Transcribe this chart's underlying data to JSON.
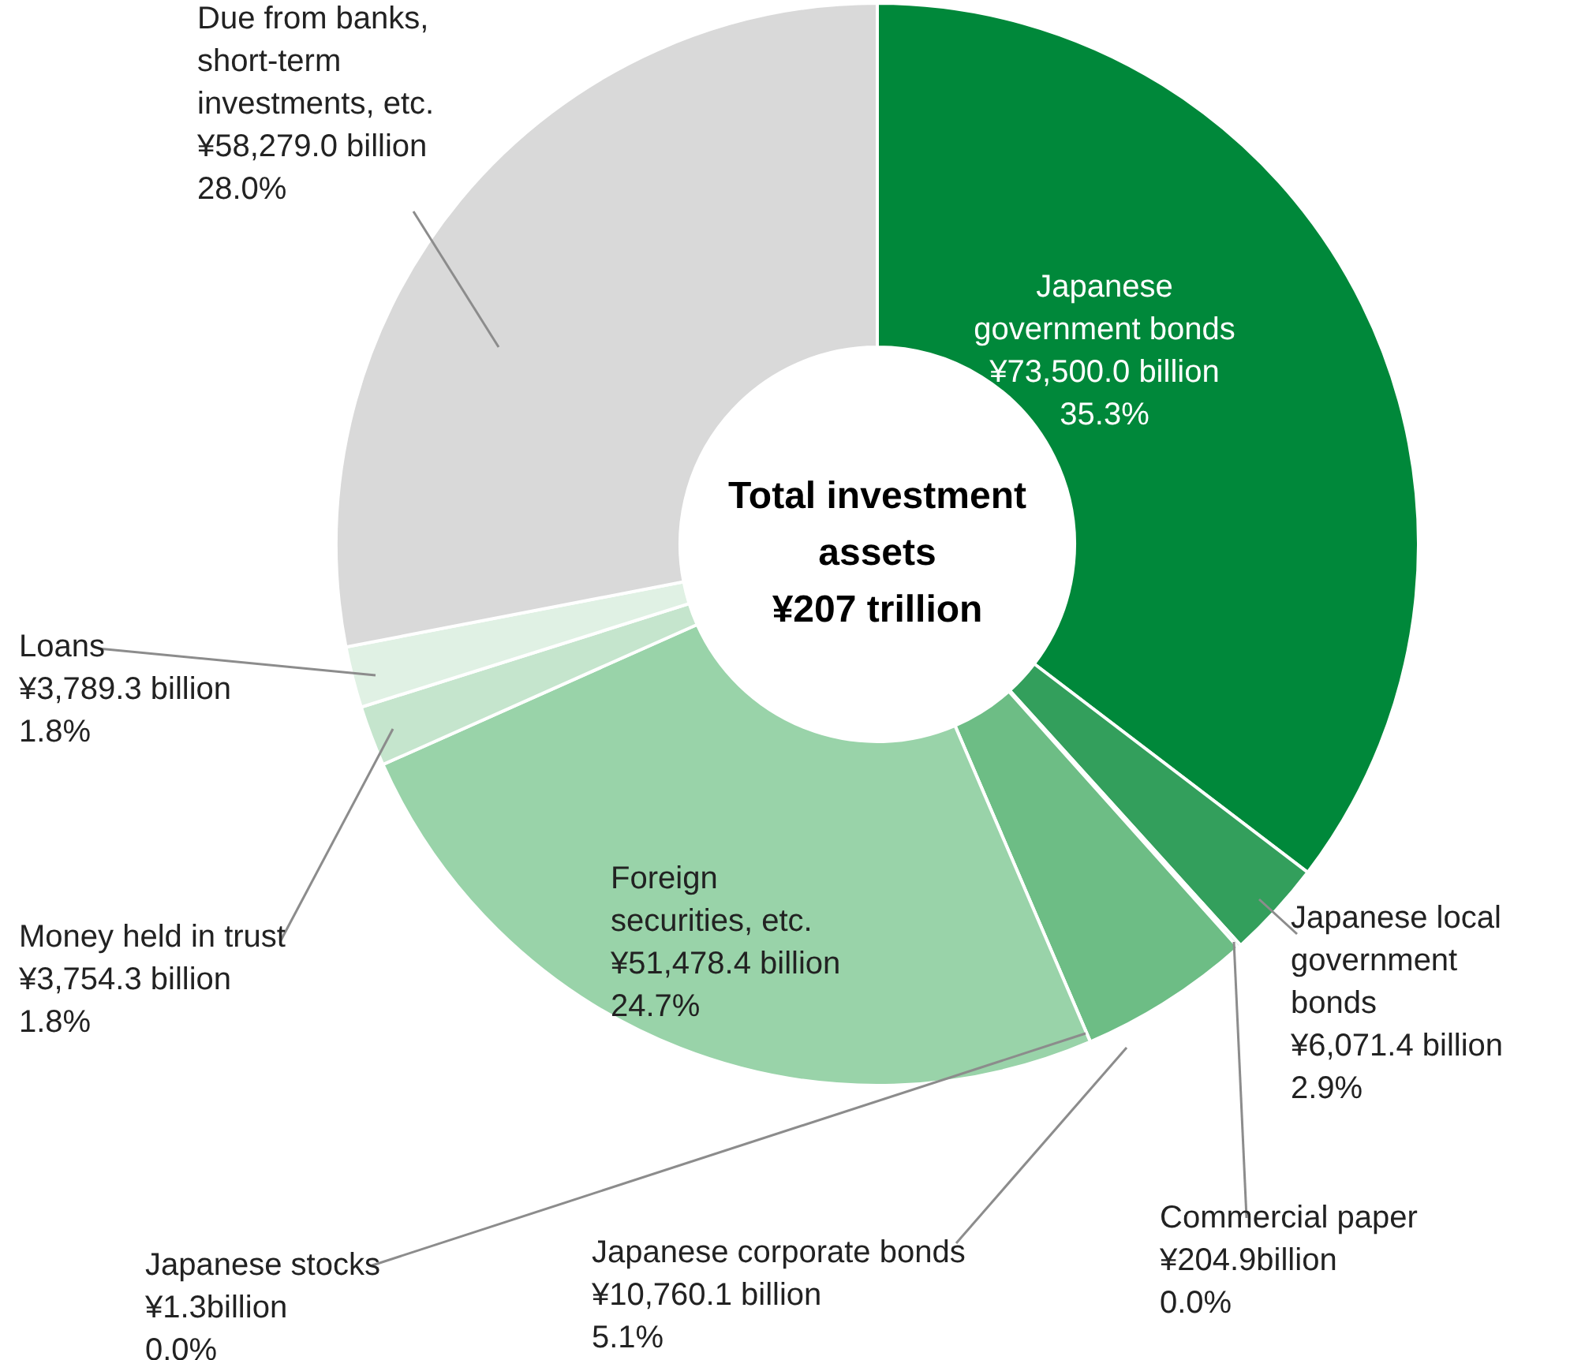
{
  "chart_data": {
    "type": "donut",
    "categories": [
      "Japanese government bonds",
      "Japanese local government bonds",
      "Commercial paper",
      "Japanese corporate bonds",
      "Japanese stocks",
      "Foreign securities, etc.",
      "Money held in trust",
      "Loans",
      "Due from banks, short-term investments, etc."
    ],
    "values": [
      73500.0,
      6071.4,
      204.9,
      10760.1,
      1.3,
      51478.4,
      3754.3,
      3789.3,
      58279.0
    ],
    "colors": [
      "#00883a",
      "#339f5c",
      "#56b275",
      "#6dbd85",
      "#85c897",
      "#99d3a9",
      "#c5e5cd",
      "#e0f1e4",
      "#d9d9d9"
    ],
    "value_labels": [
      "¥73,500.0 billion",
      "¥6,071.4 billion",
      "¥204.9billion",
      "¥10,760.1 billion",
      "¥1.3billion",
      "¥51,478.4 billion",
      "¥3,754.3 billion",
      "¥3,789.3 billion",
      "¥58,279.0 billion"
    ],
    "annotations": [
      "Total investment assets ¥207 trillion",
      "35.3%",
      "2.9%",
      "0.0%",
      "5.1%",
      "0.0%",
      "24.7%",
      "1.8%",
      "1.8%",
      "28.0%"
    ]
  }
}
